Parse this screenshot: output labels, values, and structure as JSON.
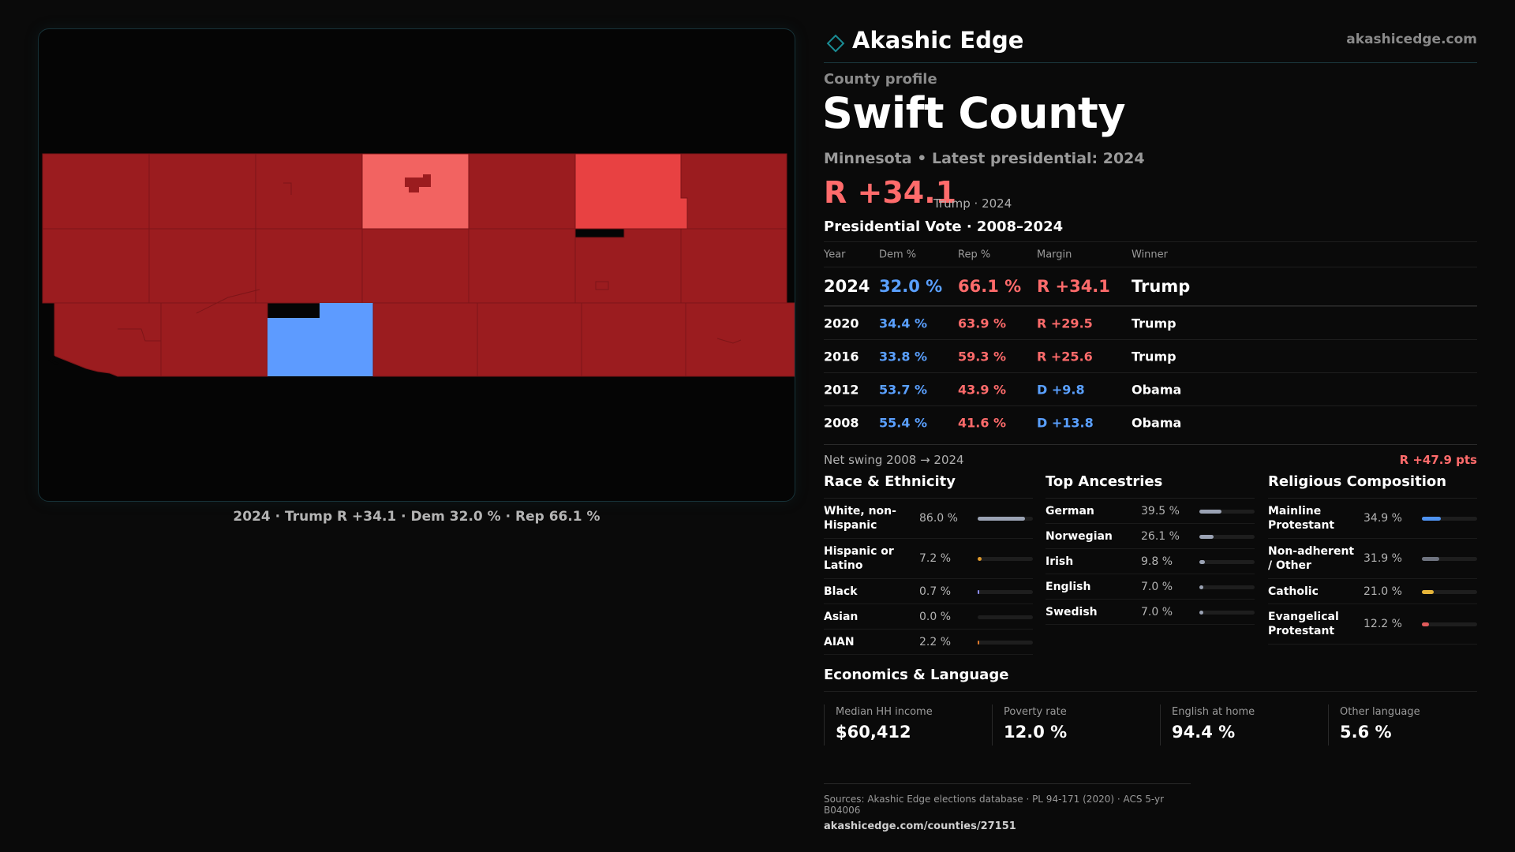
{
  "brand": {
    "name": "Akashic Edge",
    "url": "akashicedge.com",
    "accent": "#1a8c94"
  },
  "colors": {
    "dem": "#5aa0ff",
    "rep": "#ff6b6b",
    "rep_strong": "#9b1c1f",
    "rep_mid": "#e84142",
    "rep_light": "#f26361",
    "dem_fill": "#5d9bff"
  },
  "map": {
    "caption": "2024 · Trump R +34.1 · Dem 32.0 % · Rep 66.1 %"
  },
  "profile": {
    "kicker": "County profile",
    "title": "Swift County",
    "subtitle": "Minnesota • Latest presidential: 2024",
    "margin": "R +34.1",
    "margin_note": "Trump · 2024"
  },
  "votes": {
    "title": "Presidential Vote · 2008–2024",
    "headers": {
      "year": "Year",
      "dem": "Dem %",
      "rep": "Rep %",
      "margin": "Margin",
      "winner": "Winner"
    },
    "latest": {
      "year": "2024",
      "dem": "32.0 %",
      "rep": "66.1 %",
      "margin": "R +34.1",
      "winner": "Trump"
    },
    "rows": [
      {
        "year": "2020",
        "dem": "34.4 %",
        "rep": "63.9 %",
        "margin": "R +29.5",
        "winner": "Trump"
      },
      {
        "year": "2016",
        "dem": "33.8 %",
        "rep": "59.3 %",
        "margin": "R +25.6",
        "winner": "Trump"
      },
      {
        "year": "2012",
        "dem": "53.7 %",
        "rep": "43.9 %",
        "margin": "D +9.8",
        "winner": "Obama"
      },
      {
        "year": "2008",
        "dem": "55.4 %",
        "rep": "41.6 %",
        "margin": "D +13.8",
        "winner": "Obama"
      }
    ],
    "swing_label": "Net swing 2008 → 2024",
    "swing_value": "R +47.9 pts"
  },
  "race": {
    "title": "Race & Ethnicity",
    "items": [
      {
        "label": "White, non-Hispanic",
        "value": "86.0 %",
        "pct": 86.0,
        "color": "#9ba3b4"
      },
      {
        "label": "Hispanic or Latino",
        "value": "7.2 %",
        "pct": 7.2,
        "color": "#e09a2c"
      },
      {
        "label": "Black",
        "value": "0.7 %",
        "pct": 0.7,
        "color": "#8c8cff"
      },
      {
        "label": "Asian",
        "value": "0.0 %",
        "pct": 0.0,
        "color": "#4fc3c8"
      },
      {
        "label": "AIAN",
        "value": "2.2 %",
        "pct": 2.2,
        "color": "#e07a2c"
      }
    ]
  },
  "ancestry": {
    "title": "Top Ancestries",
    "items": [
      {
        "label": "German",
        "value": "39.5 %",
        "pct": 39.5,
        "color": "#9ba3b4"
      },
      {
        "label": "Norwegian",
        "value": "26.1 %",
        "pct": 26.1,
        "color": "#9ba3b4"
      },
      {
        "label": "Irish",
        "value": "9.8 %",
        "pct": 9.8,
        "color": "#9ba3b4"
      },
      {
        "label": "English",
        "value": "7.0 %",
        "pct": 7.0,
        "color": "#9ba3b4"
      },
      {
        "label": "Swedish",
        "value": "7.0 %",
        "pct": 7.0,
        "color": "#9ba3b4"
      }
    ]
  },
  "religion": {
    "title": "Religious Composition",
    "items": [
      {
        "label": "Mainline Protestant",
        "value": "34.9 %",
        "pct": 34.9,
        "color": "#4f93f0"
      },
      {
        "label": "Non-adherent / Other",
        "value": "31.9 %",
        "pct": 31.9,
        "color": "#6f7480"
      },
      {
        "label": "Catholic",
        "value": "21.0 %",
        "pct": 21.0,
        "color": "#e6b53a"
      },
      {
        "label": "Evangelical Protestant",
        "value": "12.2 %",
        "pct": 12.2,
        "color": "#e05a5a"
      }
    ]
  },
  "economics": {
    "title": "Economics & Language",
    "cards": [
      {
        "label": "Median HH income",
        "value": "$60,412"
      },
      {
        "label": "Poverty rate",
        "value": "12.0 %"
      },
      {
        "label": "English at home",
        "value": "94.4 %"
      },
      {
        "label": "Other language",
        "value": "5.6 %"
      }
    ]
  },
  "sources": {
    "line1": "Sources: Akashic Edge elections database · PL 94-171 (2020) · ACS 5-yr B04006",
    "line2": "akashicedge.com/counties/27151"
  }
}
